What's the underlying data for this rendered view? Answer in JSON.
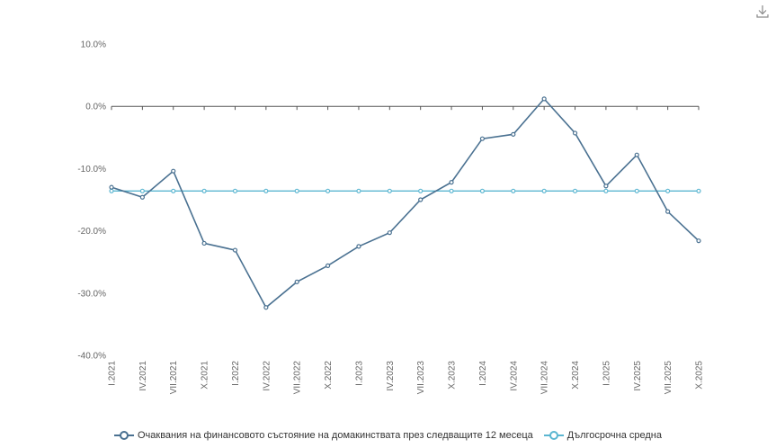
{
  "chart_data": {
    "type": "line",
    "title": "",
    "xlabel": "",
    "ylabel": "",
    "ylim": [
      -40,
      10
    ],
    "yticks": [
      "10.0%",
      "0.0%",
      "-10.0%",
      "-20.0%",
      "-30.0%",
      "-40.0%"
    ],
    "ytick_values": [
      10,
      0,
      -10,
      -20,
      -30,
      -40
    ],
    "categories": [
      "I.2021",
      "IV.2021",
      "VII.2021",
      "X.2021",
      "I.2022",
      "IV.2022",
      "VII.2022",
      "X.2022",
      "I.2023",
      "IV.2023",
      "VII.2023",
      "X.2023",
      "I.2024",
      "IV.2024",
      "VII.2024",
      "X.2024",
      "I.2025",
      "IV.2025",
      "VII.2025",
      "X.2025"
    ],
    "series": [
      {
        "name": "Очаквания на финансовото състояние на домакинствата през следващите 12 месеца",
        "color": "#4a7191",
        "values": [
          -13.0,
          -14.6,
          -10.4,
          -22.0,
          -23.1,
          -32.3,
          -28.2,
          -25.6,
          -22.5,
          -20.3,
          -15.0,
          -12.2,
          -5.2,
          -4.5,
          1.2,
          -4.3,
          -12.8,
          -7.8,
          -16.9,
          -21.6
        ]
      },
      {
        "name": "Дългосрочна средна",
        "color": "#5bb6d1",
        "values": [
          -13.6,
          -13.6,
          -13.6,
          -13.6,
          -13.6,
          -13.6,
          -13.6,
          -13.6,
          -13.6,
          -13.6,
          -13.6,
          -13.6,
          -13.6,
          -13.6,
          -13.6,
          -13.6,
          -13.6,
          -13.6,
          -13.6,
          -13.6
        ]
      }
    ],
    "legend_position": "bottom-center",
    "grid": false
  },
  "toolbar": {
    "download_icon": "download-icon"
  }
}
